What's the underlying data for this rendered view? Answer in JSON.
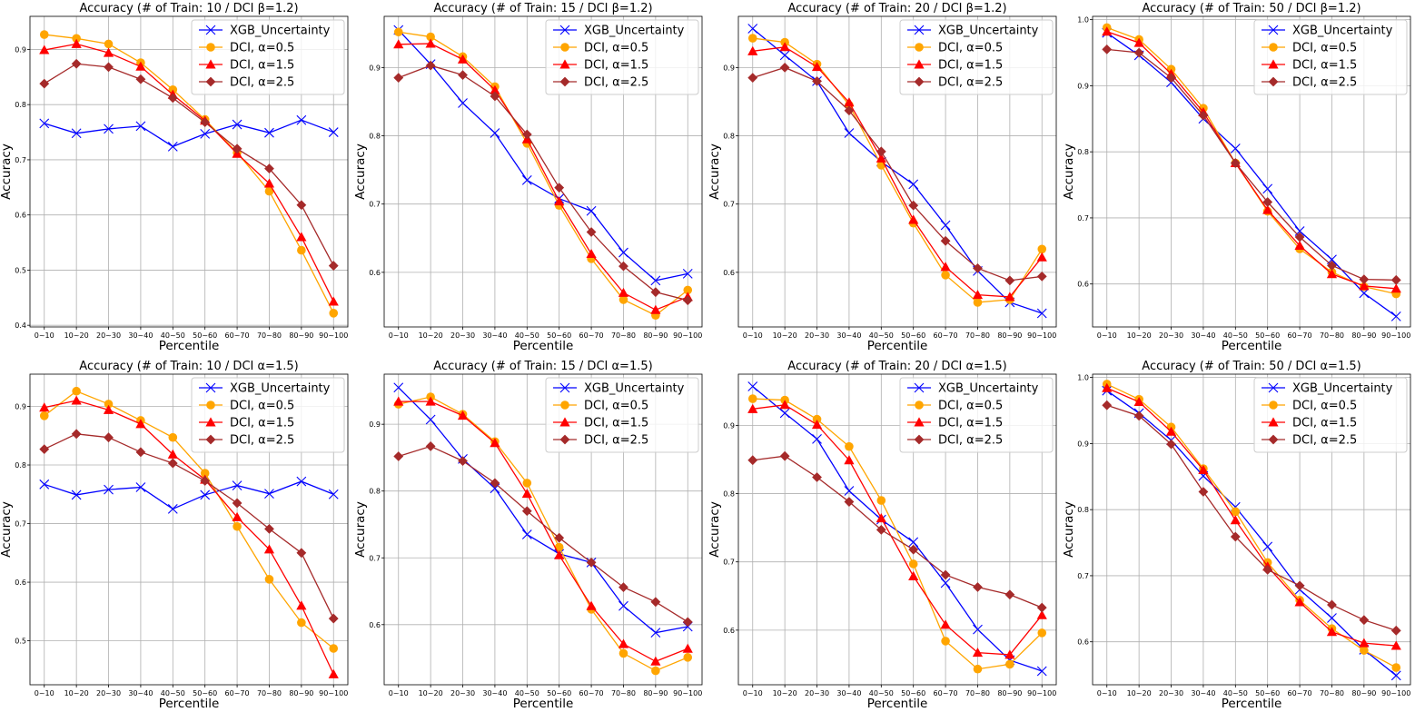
{
  "colors": {
    "XGB_Uncertainty": "#0000ff",
    "DCI_a05": "#ffa500",
    "DCI_a15": "#ff0000",
    "DCI_a25": "#a52a2a"
  },
  "chart_data": [
    {
      "type": "line",
      "title": "Accuracy (# of Train: 10 / DCI β=1.2)",
      "xlabel": "Percentile",
      "ylabel": "Accuracy",
      "categories": [
        "0~10",
        "10~20",
        "20~30",
        "30~40",
        "40~50",
        "50~60",
        "60~70",
        "70~80",
        "80~90",
        "90~100"
      ],
      "ylim": [
        0.397,
        0.96
      ],
      "yticks": [
        "0.4",
        "0.5",
        "0.6",
        "0.7",
        "0.8",
        "0.9"
      ],
      "legend_position": "top-right",
      "series": [
        {
          "name": "XGB_Uncertainty",
          "values": [
            0.766,
            0.748,
            0.756,
            0.761,
            0.724,
            0.747,
            0.764,
            0.749,
            0.772,
            0.75
          ]
        },
        {
          "name": "DCI, α=0.5",
          "values": [
            0.927,
            0.92,
            0.91,
            0.876,
            0.827,
            0.773,
            0.713,
            0.643,
            0.536,
            0.422
          ]
        },
        {
          "name": "DCI, α=1.5",
          "values": [
            0.899,
            0.91,
            0.894,
            0.869,
            0.818,
            0.771,
            0.711,
            0.657,
            0.56,
            0.443
          ]
        },
        {
          "name": "DCI, α=2.5",
          "values": [
            0.838,
            0.874,
            0.868,
            0.846,
            0.812,
            0.768,
            0.72,
            0.684,
            0.618,
            0.508
          ]
        }
      ]
    },
    {
      "type": "line",
      "title": "Accuracy (# of Train: 15 / DCI β=1.2)",
      "xlabel": "Percentile",
      "ylabel": "Accuracy",
      "categories": [
        "0~10",
        "10~20",
        "20~30",
        "30~40",
        "40~50",
        "50~60",
        "60~70",
        "70~80",
        "80~90",
        "90~100"
      ],
      "ylim": [
        0.52,
        0.975
      ],
      "yticks": [
        "0.6",
        "0.7",
        "0.8",
        "0.9"
      ],
      "legend_position": "top-right",
      "series": [
        {
          "name": "XGB_Uncertainty",
          "values": [
            0.955,
            0.905,
            0.848,
            0.804,
            0.735,
            0.708,
            0.69,
            0.629,
            0.588,
            0.598
          ]
        },
        {
          "name": "DCI, α=0.5",
          "values": [
            0.952,
            0.945,
            0.916,
            0.872,
            0.789,
            0.698,
            0.62,
            0.56,
            0.537,
            0.574
          ]
        },
        {
          "name": "DCI, α=1.5",
          "values": [
            0.934,
            0.935,
            0.912,
            0.867,
            0.795,
            0.704,
            0.627,
            0.57,
            0.545,
            0.564
          ]
        },
        {
          "name": "DCI, α=2.5",
          "values": [
            0.885,
            0.903,
            0.889,
            0.858,
            0.802,
            0.724,
            0.659,
            0.609,
            0.571,
            0.559
          ]
        }
      ]
    },
    {
      "type": "line",
      "title": "Accuracy (# of Train: 20 / DCI β=1.2)",
      "xlabel": "Percentile",
      "ylabel": "Accuracy",
      "categories": [
        "0~10",
        "10~20",
        "20~30",
        "30~40",
        "40~50",
        "50~60",
        "60~70",
        "70~80",
        "80~90",
        "90~100"
      ],
      "ylim": [
        0.52,
        0.975
      ],
      "yticks": [
        "0.6",
        "0.7",
        "0.8",
        "0.9"
      ],
      "legend_position": "top-right",
      "series": [
        {
          "name": "XGB_Uncertainty",
          "values": [
            0.957,
            0.918,
            0.88,
            0.804,
            0.762,
            0.729,
            0.669,
            0.602,
            0.556,
            0.54
          ]
        },
        {
          "name": "DCI, α=0.5",
          "values": [
            0.943,
            0.937,
            0.905,
            0.845,
            0.757,
            0.672,
            0.596,
            0.556,
            0.56,
            0.634
          ]
        },
        {
          "name": "DCI, α=1.5",
          "values": [
            0.924,
            0.93,
            0.901,
            0.849,
            0.767,
            0.677,
            0.608,
            0.567,
            0.564,
            0.622
          ]
        },
        {
          "name": "DCI, α=2.5",
          "values": [
            0.885,
            0.9,
            0.88,
            0.837,
            0.777,
            0.698,
            0.646,
            0.606,
            0.588,
            0.594
          ]
        }
      ]
    },
    {
      "type": "line",
      "title": "Accuracy (# of Train: 50 / DCI β=1.2)",
      "xlabel": "Percentile",
      "ylabel": "Accuracy",
      "categories": [
        "0~10",
        "10~20",
        "20~30",
        "30~40",
        "40~50",
        "50~60",
        "60~70",
        "70~80",
        "80~90",
        "90~100"
      ],
      "ylim": [
        0.535,
        1.005
      ],
      "yticks": [
        "0.6",
        "0.7",
        "0.8",
        "0.9",
        "1.0"
      ],
      "legend_position": "top-right",
      "series": [
        {
          "name": "XGB_Uncertainty",
          "values": [
            0.98,
            0.946,
            0.905,
            0.85,
            0.805,
            0.744,
            0.68,
            0.637,
            0.586,
            0.551
          ]
        },
        {
          "name": "DCI, α=0.5",
          "values": [
            0.988,
            0.97,
            0.925,
            0.866,
            0.783,
            0.71,
            0.653,
            0.618,
            0.596,
            0.585
          ]
        },
        {
          "name": "DCI, α=1.5",
          "values": [
            0.982,
            0.965,
            0.918,
            0.86,
            0.783,
            0.712,
            0.658,
            0.615,
            0.597,
            0.593
          ]
        },
        {
          "name": "DCI, α=2.5",
          "values": [
            0.955,
            0.95,
            0.912,
            0.855,
            0.783,
            0.724,
            0.671,
            0.628,
            0.607,
            0.606
          ]
        }
      ]
    },
    {
      "type": "line",
      "title": "Accuracy (# of Train: 10 / DCI α=1.5)",
      "xlabel": "Percentile",
      "ylabel": "Accuracy",
      "categories": [
        "0~10",
        "10~20",
        "20~30",
        "30~40",
        "40~50",
        "50~60",
        "60~70",
        "70~80",
        "80~90",
        "90~100"
      ],
      "ylim": [
        0.425,
        0.955
      ],
      "yticks": [
        "0.5",
        "0.6",
        "0.7",
        "0.8",
        "0.9"
      ],
      "legend_position": "top-right",
      "series": [
        {
          "name": "XGB_Uncertainty",
          "values": [
            0.767,
            0.749,
            0.758,
            0.762,
            0.725,
            0.749,
            0.765,
            0.751,
            0.772,
            0.75
          ]
        },
        {
          "name": "DCI, α=0.5",
          "values": [
            0.884,
            0.926,
            0.904,
            0.876,
            0.847,
            0.786,
            0.695,
            0.605,
            0.531,
            0.487
          ]
        },
        {
          "name": "DCI, α=1.5",
          "values": [
            0.898,
            0.91,
            0.894,
            0.87,
            0.818,
            0.775,
            0.711,
            0.656,
            0.56,
            0.443
          ]
        },
        {
          "name": "DCI, α=2.5",
          "values": [
            0.827,
            0.853,
            0.847,
            0.822,
            0.803,
            0.773,
            0.735,
            0.691,
            0.65,
            0.538
          ]
        }
      ]
    },
    {
      "type": "line",
      "title": "Accuracy (# of Train: 15 / DCI α=1.5)",
      "xlabel": "Percentile",
      "ylabel": "Accuracy",
      "categories": [
        "0~10",
        "10~20",
        "20~30",
        "30~40",
        "40~50",
        "50~60",
        "60~70",
        "70~80",
        "80~90",
        "90~100"
      ],
      "ylim": [
        0.51,
        0.975
      ],
      "yticks": [
        "0.6",
        "0.7",
        "0.8",
        "0.9"
      ],
      "legend_position": "top-right",
      "series": [
        {
          "name": "XGB_Uncertainty",
          "values": [
            0.955,
            0.907,
            0.848,
            0.804,
            0.735,
            0.706,
            0.693,
            0.628,
            0.588,
            0.597
          ]
        },
        {
          "name": "DCI, α=0.5",
          "values": [
            0.93,
            0.941,
            0.915,
            0.874,
            0.812,
            0.716,
            0.623,
            0.557,
            0.531,
            0.551
          ]
        },
        {
          "name": "DCI, α=1.5",
          "values": [
            0.934,
            0.934,
            0.913,
            0.872,
            0.796,
            0.704,
            0.628,
            0.571,
            0.545,
            0.564
          ]
        },
        {
          "name": "DCI, α=2.5",
          "values": [
            0.852,
            0.867,
            0.845,
            0.812,
            0.77,
            0.73,
            0.693,
            0.656,
            0.634,
            0.604
          ]
        }
      ]
    },
    {
      "type": "line",
      "title": "Accuracy (# of Train: 20 / DCI α=1.5)",
      "xlabel": "Percentile",
      "ylabel": "Accuracy",
      "categories": [
        "0~10",
        "10~20",
        "20~30",
        "30~40",
        "40~50",
        "50~60",
        "60~70",
        "70~80",
        "80~90",
        "90~100"
      ],
      "ylim": [
        0.52,
        0.975
      ],
      "yticks": [
        "0.6",
        "0.7",
        "0.8",
        "0.9"
      ],
      "legend_position": "top-right",
      "series": [
        {
          "name": "XGB_Uncertainty",
          "values": [
            0.957,
            0.918,
            0.88,
            0.804,
            0.762,
            0.729,
            0.669,
            0.601,
            0.556,
            0.54
          ]
        },
        {
          "name": "DCI, α=0.5",
          "values": [
            0.939,
            0.937,
            0.909,
            0.869,
            0.79,
            0.697,
            0.584,
            0.543,
            0.55,
            0.596
          ]
        },
        {
          "name": "DCI, α=1.5",
          "values": [
            0.924,
            0.93,
            0.901,
            0.849,
            0.764,
            0.679,
            0.608,
            0.567,
            0.564,
            0.622
          ]
        },
        {
          "name": "DCI, α=2.5",
          "values": [
            0.849,
            0.855,
            0.824,
            0.788,
            0.747,
            0.718,
            0.681,
            0.663,
            0.652,
            0.633
          ]
        }
      ]
    },
    {
      "type": "line",
      "title": "Accuracy (# of Train: 50 / DCI α=1.5)",
      "xlabel": "Percentile",
      "ylabel": "Accuracy",
      "categories": [
        "0~10",
        "10~20",
        "20~30",
        "30~40",
        "40~50",
        "50~60",
        "60~70",
        "70~80",
        "80~90",
        "90~100"
      ],
      "ylim": [
        0.535,
        1.005
      ],
      "yticks": [
        "0.6",
        "0.7",
        "0.8",
        "0.9",
        "1.0"
      ],
      "legend_position": "top-right",
      "series": [
        {
          "name": "XGB_Uncertainty",
          "values": [
            0.98,
            0.946,
            0.905,
            0.851,
            0.804,
            0.744,
            0.679,
            0.636,
            0.588,
            0.549
          ]
        },
        {
          "name": "DCI, α=0.5",
          "values": [
            0.99,
            0.967,
            0.925,
            0.862,
            0.797,
            0.72,
            0.663,
            0.62,
            0.587,
            0.561
          ]
        },
        {
          "name": "DCI, α=1.5",
          "values": [
            0.984,
            0.963,
            0.918,
            0.86,
            0.784,
            0.714,
            0.66,
            0.615,
            0.598,
            0.594
          ]
        },
        {
          "name": "DCI, α=2.5",
          "values": [
            0.958,
            0.942,
            0.899,
            0.827,
            0.759,
            0.709,
            0.685,
            0.656,
            0.633,
            0.617
          ]
        }
      ]
    }
  ]
}
